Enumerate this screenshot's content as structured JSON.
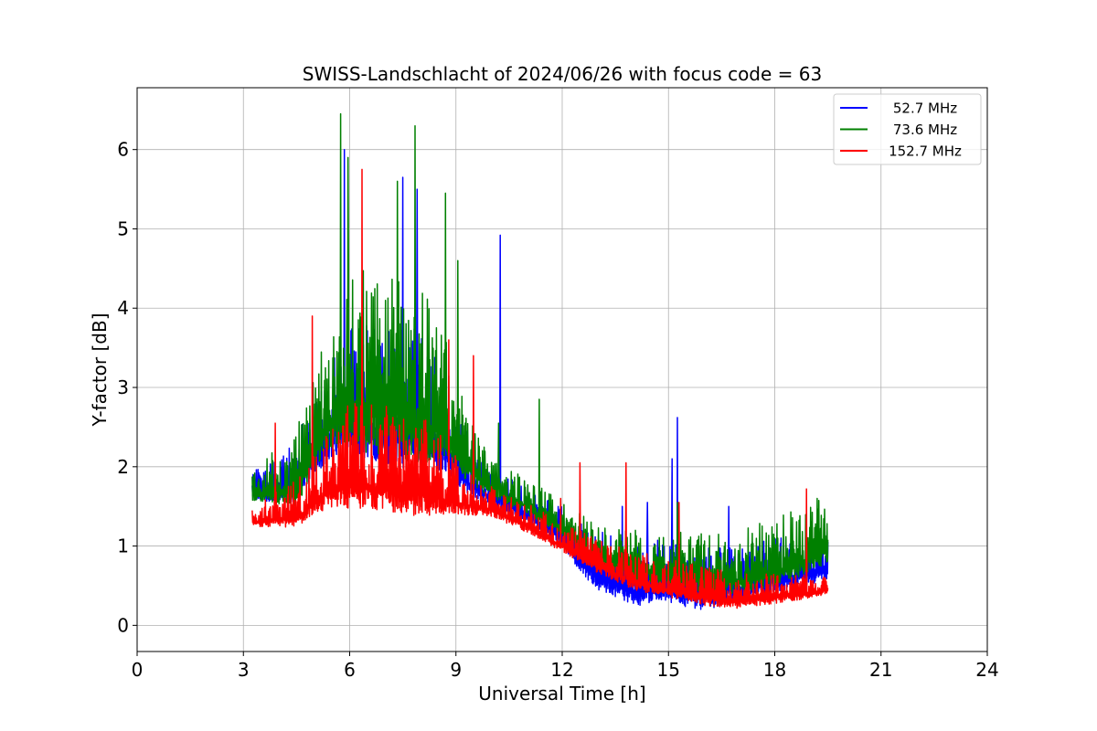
{
  "chart_data": {
    "type": "line",
    "title": "SWISS-Landschlacht of 2024/06/26 with focus code = 63",
    "xlabel": "Universal Time [h]",
    "ylabel": "Y-factor [dB]",
    "xlim": [
      0,
      24
    ],
    "ylim": [
      -0.33,
      6.78
    ],
    "xticks": [
      0,
      3,
      6,
      9,
      12,
      15,
      18,
      21,
      24
    ],
    "xtick_labels": [
      "0",
      "3",
      "6",
      "9",
      "12",
      "15",
      "18",
      "21",
      "24"
    ],
    "yticks": [
      0,
      1,
      2,
      3,
      4,
      5,
      6
    ],
    "ytick_labels": [
      "0",
      "1",
      "2",
      "3",
      "4",
      "5",
      "6"
    ],
    "grid": true,
    "legend_position": "top-right",
    "series": [
      {
        "name": "52.7 MHz",
        "color": "#0000ff",
        "x_start": 3.25,
        "x_end": 19.5,
        "baseline": [
          [
            3.25,
            1.65
          ],
          [
            4.5,
            1.7
          ],
          [
            5,
            2.1
          ],
          [
            5.5,
            2.4
          ],
          [
            6,
            2.5
          ],
          [
            7,
            2.4
          ],
          [
            8,
            2.3
          ],
          [
            8.7,
            2.2
          ],
          [
            9.3,
            1.8
          ],
          [
            10,
            1.6
          ],
          [
            11,
            1.4
          ],
          [
            12,
            1.1
          ],
          [
            12.5,
            0.8
          ],
          [
            13,
            0.6
          ],
          [
            14,
            0.4
          ],
          [
            15,
            0.45
          ],
          [
            16,
            0.35
          ],
          [
            17,
            0.45
          ],
          [
            18,
            0.55
          ],
          [
            19,
            0.65
          ],
          [
            19.5,
            0.7
          ]
        ],
        "spread": [
          [
            3.25,
            0.3
          ],
          [
            5,
            0.8
          ],
          [
            6,
            1.5
          ],
          [
            8,
            1.5
          ],
          [
            9,
            0.8
          ],
          [
            10,
            0.35
          ],
          [
            12,
            0.4
          ],
          [
            13,
            0.6
          ],
          [
            15,
            0.7
          ],
          [
            17,
            0.6
          ],
          [
            19.5,
            0.5
          ]
        ],
        "spikes": [
          [
            5.85,
            6.0
          ],
          [
            7.5,
            5.65
          ],
          [
            7.9,
            5.5
          ],
          [
            10.25,
            4.92
          ],
          [
            15.25,
            2.62
          ],
          [
            15.1,
            2.1
          ],
          [
            13.7,
            1.5
          ],
          [
            14.4,
            1.55
          ],
          [
            16.7,
            1.5
          ]
        ]
      },
      {
        "name": "73.6 MHz",
        "color": "#008000",
        "x_start": 3.25,
        "x_end": 19.5,
        "baseline": [
          [
            3.25,
            1.65
          ],
          [
            4.5,
            1.7
          ],
          [
            5,
            2.2
          ],
          [
            5.5,
            2.6
          ],
          [
            6,
            2.7
          ],
          [
            7,
            2.6
          ],
          [
            8,
            2.5
          ],
          [
            8.8,
            2.4
          ],
          [
            9.3,
            2.0
          ],
          [
            10,
            1.7
          ],
          [
            11,
            1.5
          ],
          [
            12,
            1.2
          ],
          [
            13,
            0.85
          ],
          [
            14,
            0.7
          ],
          [
            15,
            0.65
          ],
          [
            16,
            0.55
          ],
          [
            17,
            0.55
          ],
          [
            18,
            0.65
          ],
          [
            19,
            0.85
          ],
          [
            19.5,
            0.95
          ]
        ],
        "spread": [
          [
            3.25,
            0.3
          ],
          [
            5,
            1.0
          ],
          [
            6,
            1.9
          ],
          [
            8,
            1.9
          ],
          [
            9,
            0.9
          ],
          [
            10,
            0.4
          ],
          [
            12,
            0.35
          ],
          [
            14,
            0.5
          ],
          [
            16,
            0.6
          ],
          [
            18,
            0.7
          ],
          [
            19.5,
            0.7
          ]
        ],
        "spikes": [
          [
            5.75,
            6.45
          ],
          [
            7.85,
            6.3
          ],
          [
            5.95,
            5.9
          ],
          [
            8.7,
            5.45
          ],
          [
            7.35,
            5.6
          ],
          [
            9.05,
            4.6
          ],
          [
            11.35,
            2.85
          ],
          [
            10.2,
            2.55
          ],
          [
            19.2,
            1.6
          ],
          [
            15.25,
            1.55
          ]
        ]
      },
      {
        "name": "152.7 MHz",
        "color": "#ff0000",
        "x_start": 3.25,
        "x_end": 19.5,
        "baseline": [
          [
            3.25,
            1.3
          ],
          [
            4.5,
            1.35
          ],
          [
            5,
            1.55
          ],
          [
            5.5,
            1.7
          ],
          [
            6,
            1.75
          ],
          [
            7,
            1.7
          ],
          [
            8,
            1.65
          ],
          [
            9,
            1.55
          ],
          [
            10,
            1.45
          ],
          [
            11,
            1.25
          ],
          [
            12,
            1.0
          ],
          [
            13,
            0.75
          ],
          [
            14,
            0.55
          ],
          [
            15,
            0.45
          ],
          [
            16,
            0.35
          ],
          [
            17,
            0.3
          ],
          [
            18,
            0.35
          ],
          [
            19,
            0.4
          ],
          [
            19.5,
            0.45
          ]
        ],
        "spread": [
          [
            3.25,
            0.2
          ],
          [
            5,
            0.6
          ],
          [
            6,
            1.1
          ],
          [
            8,
            1.1
          ],
          [
            9,
            0.6
          ],
          [
            10,
            0.3
          ],
          [
            12,
            0.3
          ],
          [
            14,
            0.4
          ],
          [
            16,
            0.4
          ],
          [
            18,
            0.3
          ],
          [
            19.5,
            0.2
          ]
        ],
        "spikes": [
          [
            6.35,
            5.75
          ],
          [
            3.9,
            2.55
          ],
          [
            4.95,
            3.9
          ],
          [
            8.8,
            3.6
          ],
          [
            9.5,
            3.4
          ],
          [
            12.5,
            2.05
          ],
          [
            13.8,
            2.05
          ],
          [
            15.3,
            1.55
          ],
          [
            18.9,
            1.72
          ],
          [
            11.95,
            1.6
          ]
        ]
      }
    ]
  }
}
